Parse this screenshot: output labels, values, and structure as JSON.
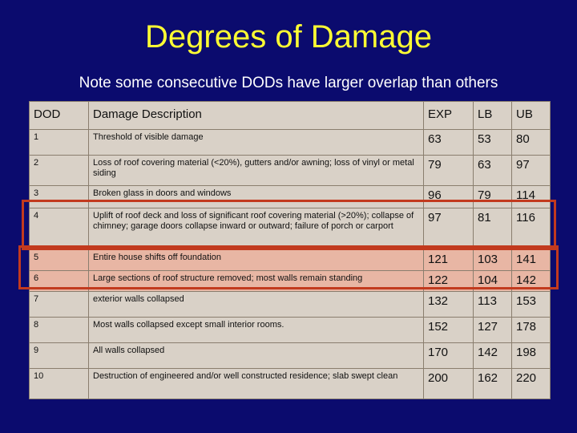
{
  "slide": {
    "title": "Degrees of Damage",
    "subtitle": "Note some consecutive DODs have larger overlap than others"
  },
  "table": {
    "headers": [
      "DOD",
      "Damage Description",
      "EXP",
      "LB",
      "UB"
    ],
    "rows": [
      {
        "dod": "1",
        "desc": "Threshold of visible damage",
        "exp": "63",
        "lb": "53",
        "ub": "80"
      },
      {
        "dod": "2",
        "desc": "Loss of roof covering material (<20%), gutters and/or awning; loss of vinyl or metal siding",
        "exp": "79",
        "lb": "63",
        "ub": "97"
      },
      {
        "dod": "3",
        "desc": "Broken glass in doors and windows",
        "exp": "96",
        "lb": "79",
        "ub": "114"
      },
      {
        "dod": "4",
        "desc": "Uplift of roof deck and loss of significant roof covering material (>20%); collapse of chimney; garage doors collapse inward or outward; failure of porch or carport",
        "exp": "97",
        "lb": "81",
        "ub": "116"
      },
      {
        "dod": "5",
        "desc": "Entire house shifts off foundation",
        "exp": "121",
        "lb": "103",
        "ub": "141"
      },
      {
        "dod": "6",
        "desc": "Large sections of roof structure removed; most walls remain standing",
        "exp": "122",
        "lb": "104",
        "ub": "142"
      },
      {
        "dod": "7",
        "desc": "exterior walls collapsed",
        "exp": "132",
        "lb": "113",
        "ub": "153"
      },
      {
        "dod": "8",
        "desc": "Most walls collapsed except small interior rooms.",
        "exp": "152",
        "lb": "127",
        "ub": "178"
      },
      {
        "dod": "9",
        "desc": "All walls collapsed",
        "exp": "170",
        "lb": "142",
        "ub": "198"
      },
      {
        "dod": "10",
        "desc": "Destruction of engineered and/or well constructed residence; slab swept clean",
        "exp": "200",
        "lb": "162",
        "ub": "220"
      }
    ]
  },
  "colors": {
    "background": "#0b0b6e",
    "title": "#ffff33",
    "cell": "#d9d1c7",
    "highlight_cell": "#e8b6a4",
    "highlight_box": "#c23a1e"
  }
}
